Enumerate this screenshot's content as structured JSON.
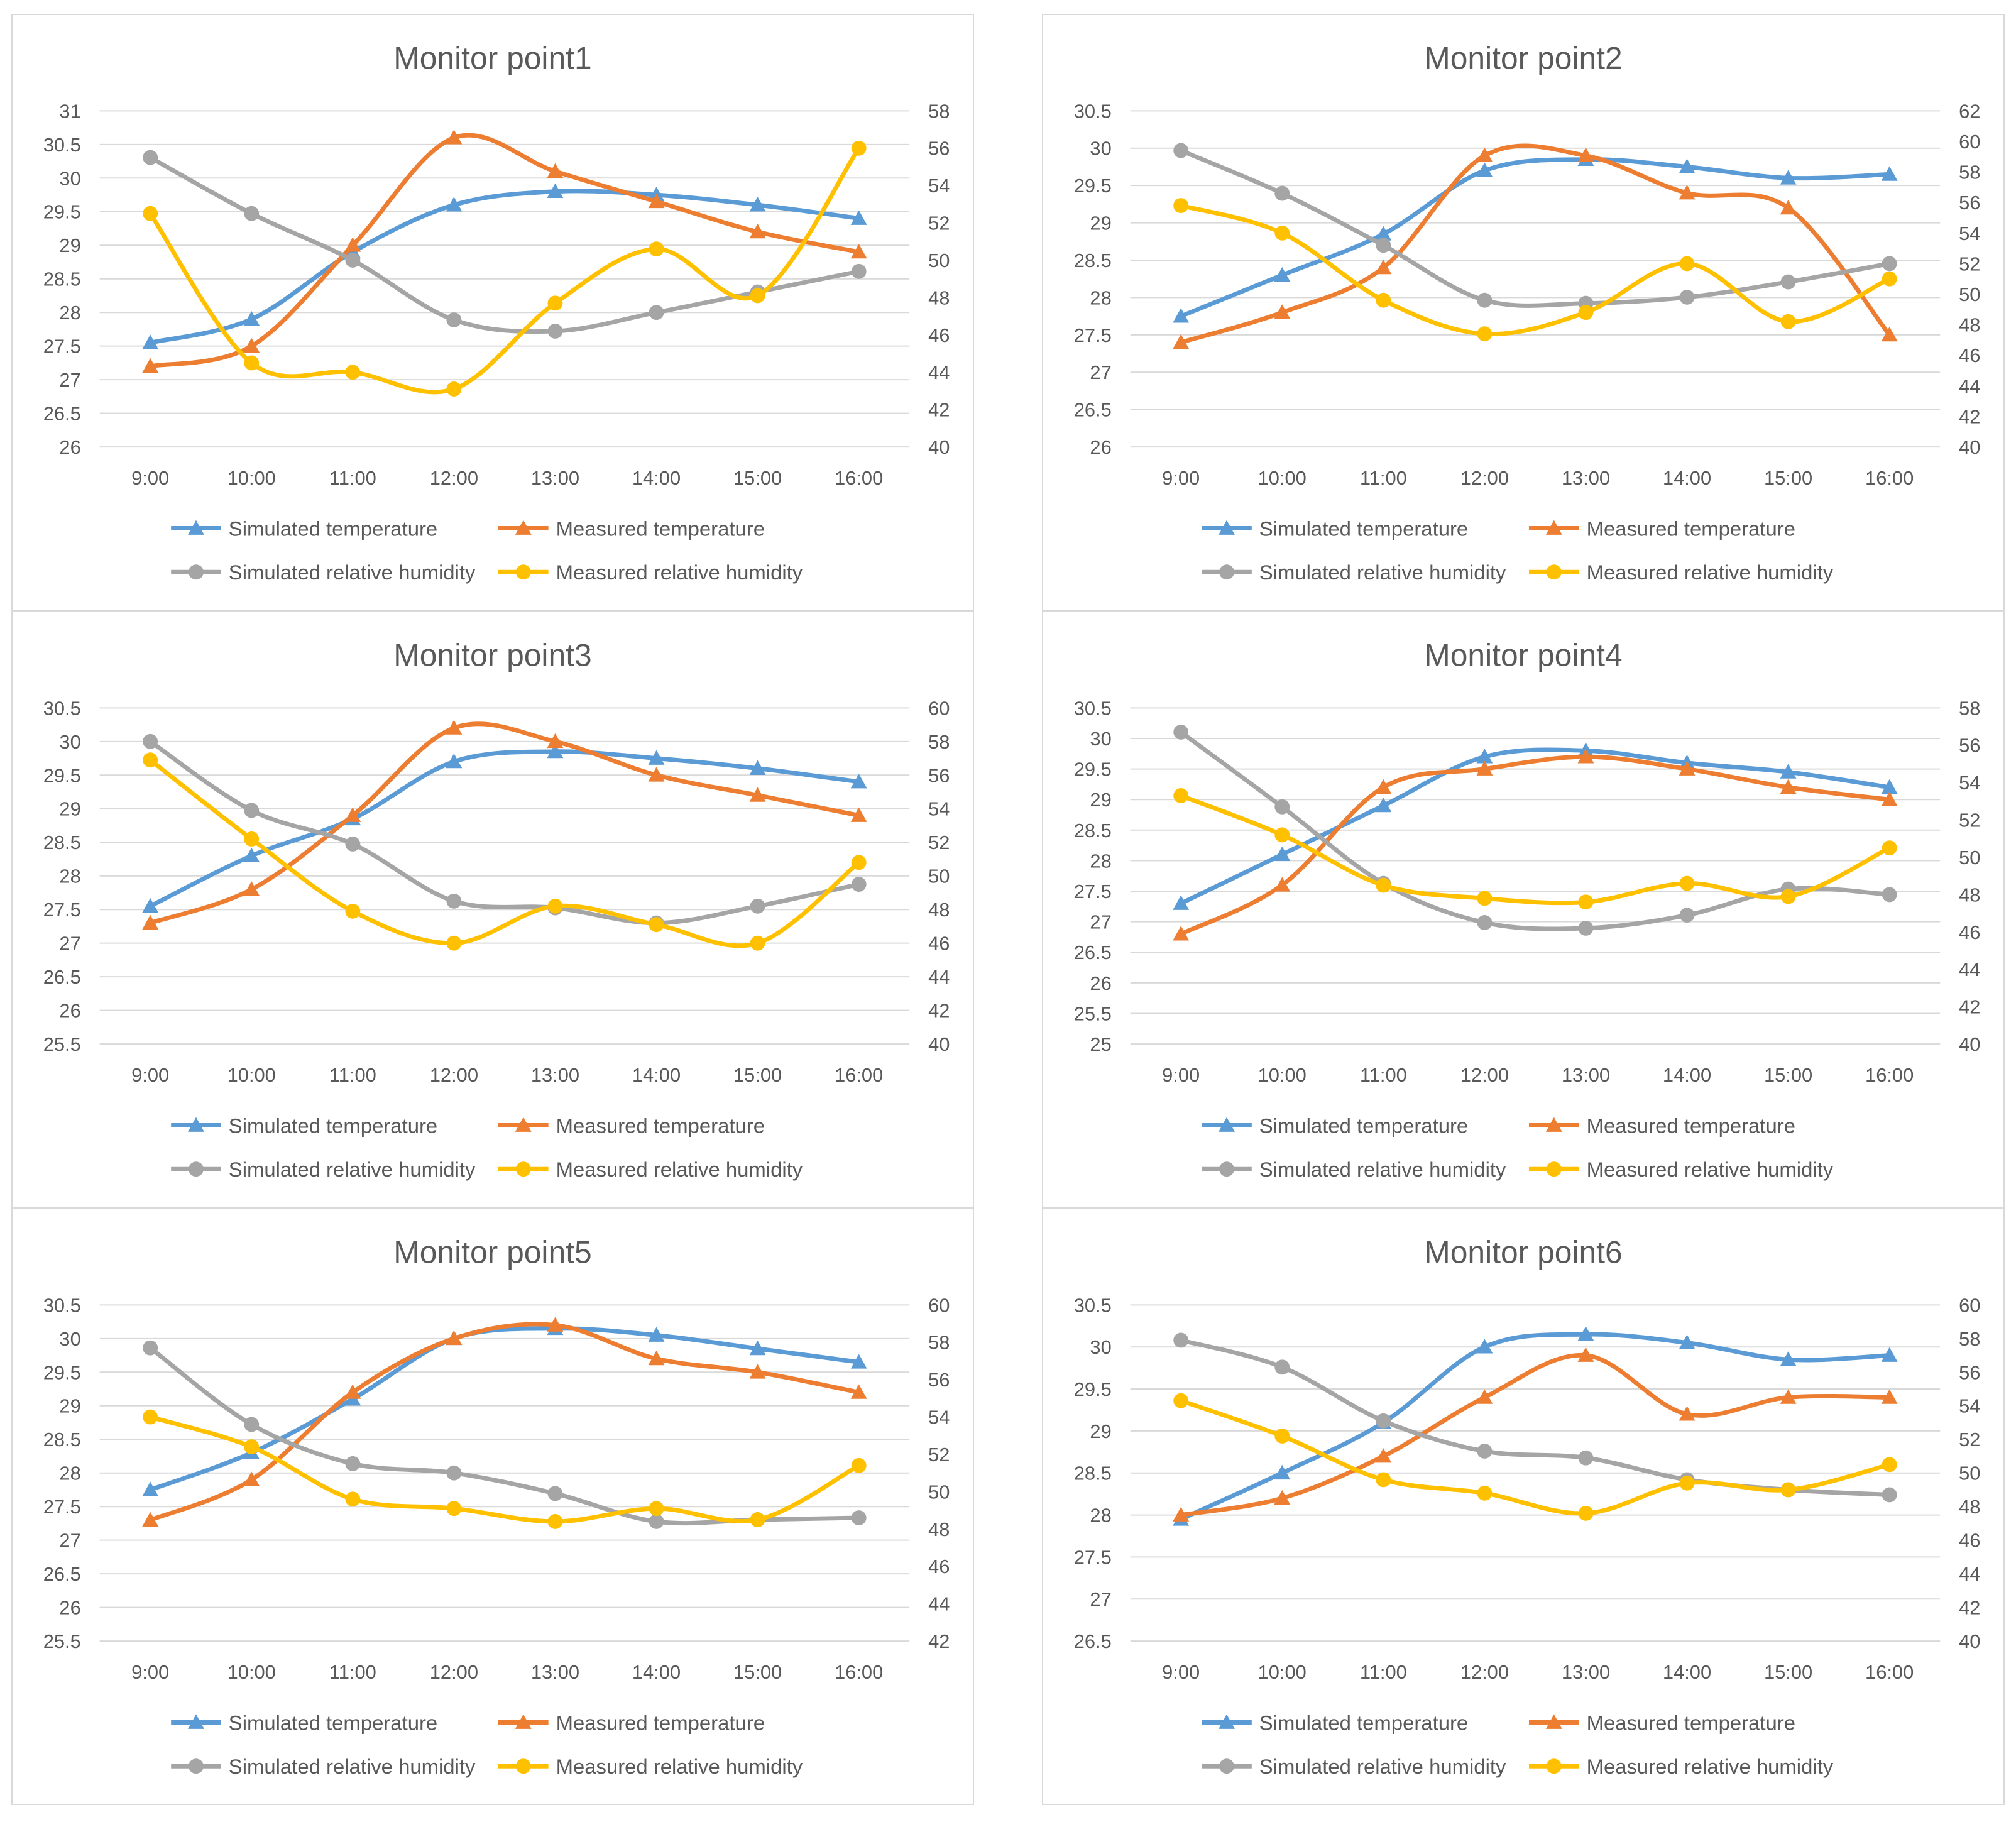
{
  "colors": {
    "simulated_temperature": "#5b9bd5",
    "measured_temperature": "#ed7d31",
    "simulated_relative_humidity": "#a5a5a5",
    "measured_relative_humidity": "#ffc000"
  },
  "chart_data": [
    {
      "type": "line",
      "title": "Monitor point1",
      "categories": [
        "9:00",
        "10:00",
        "11:00",
        "12:00",
        "13:00",
        "14:00",
        "15:00",
        "16:00"
      ],
      "y_left": {
        "range": [
          26,
          31
        ],
        "ticks": [
          "26",
          "26.5",
          "27",
          "27.5",
          "28",
          "28.5",
          "29",
          "29.5",
          "30",
          "30.5",
          "31"
        ]
      },
      "y_right": {
        "range": [
          40,
          58
        ],
        "ticks": [
          "40",
          "42",
          "44",
          "46",
          "48",
          "50",
          "52",
          "54",
          "56",
          "58"
        ]
      },
      "grid": true,
      "legend_position": "bottom",
      "series": [
        {
          "name": "Simulated temperature",
          "axis": "left",
          "marker": "triangle",
          "values": [
            27.55,
            27.9,
            28.9,
            29.6,
            29.8,
            29.75,
            29.6,
            29.4
          ]
        },
        {
          "name": "Measured temperature",
          "axis": "left",
          "marker": "triangle",
          "values": [
            27.2,
            27.5,
            29.0,
            30.6,
            30.1,
            29.65,
            29.2,
            28.9
          ]
        },
        {
          "name": "Simulated relative humidity",
          "axis": "right",
          "marker": "circle",
          "values": [
            55.5,
            52.5,
            50.0,
            46.8,
            46.2,
            47.2,
            48.3,
            49.4
          ]
        },
        {
          "name": "Measured relative humidity",
          "axis": "right",
          "marker": "circle",
          "values": [
            52.5,
            44.5,
            44.0,
            43.1,
            47.7,
            50.6,
            48.1,
            56.0
          ]
        }
      ]
    },
    {
      "type": "line",
      "title": "Monitor point2",
      "categories": [
        "9:00",
        "10:00",
        "11:00",
        "12:00",
        "13:00",
        "14:00",
        "15:00",
        "16:00"
      ],
      "y_left": {
        "range": [
          26,
          30.5
        ],
        "ticks": [
          "26",
          "26.5",
          "27",
          "27.5",
          "28",
          "28.5",
          "29",
          "29.5",
          "30",
          "30.5"
        ]
      },
      "y_right": {
        "range": [
          40,
          62
        ],
        "ticks": [
          "40",
          "42",
          "44",
          "46",
          "48",
          "50",
          "52",
          "54",
          "56",
          "58",
          "60",
          "62"
        ]
      },
      "grid": true,
      "legend_position": "bottom",
      "series": [
        {
          "name": "Simulated temperature",
          "axis": "left",
          "marker": "triangle",
          "values": [
            27.75,
            28.3,
            28.85,
            29.7,
            29.85,
            29.75,
            29.6,
            29.65
          ]
        },
        {
          "name": "Measured temperature",
          "axis": "left",
          "marker": "triangle",
          "values": [
            27.4,
            27.8,
            28.4,
            29.9,
            29.9,
            29.4,
            29.2,
            27.5
          ]
        },
        {
          "name": "Simulated relative humidity",
          "axis": "right",
          "marker": "circle",
          "values": [
            59.4,
            56.6,
            53.2,
            49.6,
            49.4,
            49.8,
            50.8,
            52.0
          ]
        },
        {
          "name": "Measured relative humidity",
          "axis": "right",
          "marker": "circle",
          "values": [
            55.8,
            54.0,
            49.6,
            47.4,
            48.8,
            52.0,
            48.2,
            51.0
          ]
        }
      ]
    },
    {
      "type": "line",
      "title": "Monitor point3",
      "categories": [
        "9:00",
        "10:00",
        "11:00",
        "12:00",
        "13:00",
        "14:00",
        "15:00",
        "16:00"
      ],
      "y_left": {
        "range": [
          25.5,
          30.5
        ],
        "ticks": [
          "25.5",
          "26",
          "26.5",
          "27",
          "27.5",
          "28",
          "28.5",
          "29",
          "29.5",
          "30",
          "30.5"
        ]
      },
      "y_right": {
        "range": [
          40,
          60
        ],
        "ticks": [
          "40",
          "42",
          "44",
          "46",
          "48",
          "50",
          "52",
          "54",
          "56",
          "58",
          "60"
        ]
      },
      "grid": true,
      "legend_position": "bottom",
      "series": [
        {
          "name": "Simulated temperature",
          "axis": "left",
          "marker": "triangle",
          "values": [
            27.55,
            28.3,
            28.85,
            29.7,
            29.85,
            29.75,
            29.6,
            29.4
          ]
        },
        {
          "name": "Measured temperature",
          "axis": "left",
          "marker": "triangle",
          "values": [
            27.3,
            27.8,
            28.9,
            30.2,
            30.0,
            29.5,
            29.2,
            28.9
          ]
        },
        {
          "name": "Simulated relative humidity",
          "axis": "right",
          "marker": "circle",
          "values": [
            58.0,
            53.9,
            51.9,
            48.5,
            48.1,
            47.2,
            48.2,
            49.5
          ]
        },
        {
          "name": "Measured relative humidity",
          "axis": "right",
          "marker": "circle",
          "values": [
            56.9,
            52.2,
            47.9,
            46.0,
            48.2,
            47.1,
            46.0,
            50.8
          ]
        }
      ]
    },
    {
      "type": "line",
      "title": "Monitor point4",
      "categories": [
        "9:00",
        "10:00",
        "11:00",
        "12:00",
        "13:00",
        "14:00",
        "15:00",
        "16:00"
      ],
      "y_left": {
        "range": [
          25,
          30.5
        ],
        "ticks": [
          "25",
          "25.5",
          "26",
          "26.5",
          "27",
          "27.5",
          "28",
          "28.5",
          "29",
          "29.5",
          "30",
          "30.5"
        ]
      },
      "y_right": {
        "range": [
          40,
          58
        ],
        "ticks": [
          "40",
          "42",
          "44",
          "46",
          "48",
          "50",
          "52",
          "54",
          "56",
          "58"
        ]
      },
      "grid": true,
      "legend_position": "bottom",
      "series": [
        {
          "name": "Simulated temperature",
          "axis": "left",
          "marker": "triangle",
          "values": [
            27.3,
            28.1,
            28.9,
            29.7,
            29.8,
            29.6,
            29.45,
            29.2
          ]
        },
        {
          "name": "Measured temperature",
          "axis": "left",
          "marker": "triangle",
          "values": [
            26.8,
            27.6,
            29.2,
            29.5,
            29.7,
            29.5,
            29.2,
            29.0
          ]
        },
        {
          "name": "Simulated relative humidity",
          "axis": "right",
          "marker": "circle",
          "values": [
            56.7,
            52.7,
            48.6,
            46.5,
            46.2,
            46.9,
            48.3,
            48.0
          ]
        },
        {
          "name": "Measured relative humidity",
          "axis": "right",
          "marker": "circle",
          "values": [
            53.3,
            51.2,
            48.5,
            47.8,
            47.6,
            48.6,
            47.9,
            50.5
          ]
        }
      ]
    },
    {
      "type": "line",
      "title": "Monitor point5",
      "categories": [
        "9:00",
        "10:00",
        "11:00",
        "12:00",
        "13:00",
        "14:00",
        "15:00",
        "16:00"
      ],
      "y_left": {
        "range": [
          25.5,
          30.5
        ],
        "ticks": [
          "25.5",
          "26",
          "26.5",
          "27",
          "27.5",
          "28",
          "28.5",
          "29",
          "29.5",
          "30",
          "30.5"
        ]
      },
      "y_right": {
        "range": [
          42,
          60
        ],
        "ticks": [
          "42",
          "44",
          "46",
          "48",
          "50",
          "52",
          "54",
          "56",
          "58",
          "60"
        ]
      },
      "grid": true,
      "legend_position": "bottom",
      "series": [
        {
          "name": "Simulated temperature",
          "axis": "left",
          "marker": "triangle",
          "values": [
            27.75,
            28.3,
            29.1,
            30.0,
            30.15,
            30.05,
            29.85,
            29.65
          ]
        },
        {
          "name": "Measured temperature",
          "axis": "left",
          "marker": "triangle",
          "values": [
            27.3,
            27.9,
            29.2,
            30.0,
            30.2,
            29.7,
            29.5,
            29.2
          ]
        },
        {
          "name": "Simulated relative humidity",
          "axis": "right",
          "marker": "circle",
          "values": [
            57.7,
            53.6,
            51.5,
            51.0,
            49.9,
            48.4,
            48.5,
            48.6
          ]
        },
        {
          "name": "Measured relative humidity",
          "axis": "right",
          "marker": "circle",
          "values": [
            54.0,
            52.4,
            49.6,
            49.1,
            48.4,
            49.1,
            48.5,
            51.4
          ]
        }
      ]
    },
    {
      "type": "line",
      "title": "Monitor point6",
      "categories": [
        "9:00",
        "10:00",
        "11:00",
        "12:00",
        "13:00",
        "14:00",
        "15:00",
        "16:00"
      ],
      "y_left": {
        "range": [
          26.5,
          30.5
        ],
        "ticks": [
          "26.5",
          "27",
          "27.5",
          "28",
          "28.5",
          "29",
          "29.5",
          "30",
          "30.5"
        ]
      },
      "y_right": {
        "range": [
          40,
          60
        ],
        "ticks": [
          "40",
          "42",
          "44",
          "46",
          "48",
          "50",
          "52",
          "54",
          "56",
          "58",
          "60"
        ]
      },
      "grid": true,
      "legend_position": "bottom",
      "series": [
        {
          "name": "Simulated temperature",
          "axis": "left",
          "marker": "triangle",
          "values": [
            27.95,
            28.5,
            29.1,
            30.0,
            30.15,
            30.05,
            29.85,
            29.9
          ]
        },
        {
          "name": "Measured temperature",
          "axis": "left",
          "marker": "triangle",
          "values": [
            28.0,
            28.2,
            28.7,
            29.4,
            29.9,
            29.2,
            29.4,
            29.4
          ]
        },
        {
          "name": "Simulated relative humidity",
          "axis": "right",
          "marker": "circle",
          "values": [
            57.9,
            56.3,
            53.1,
            51.3,
            50.9,
            49.6,
            49.0,
            48.7
          ]
        },
        {
          "name": "Measured relative humidity",
          "axis": "right",
          "marker": "circle",
          "values": [
            54.3,
            52.2,
            49.6,
            48.8,
            47.6,
            49.4,
            49.0,
            50.5
          ]
        }
      ]
    }
  ]
}
